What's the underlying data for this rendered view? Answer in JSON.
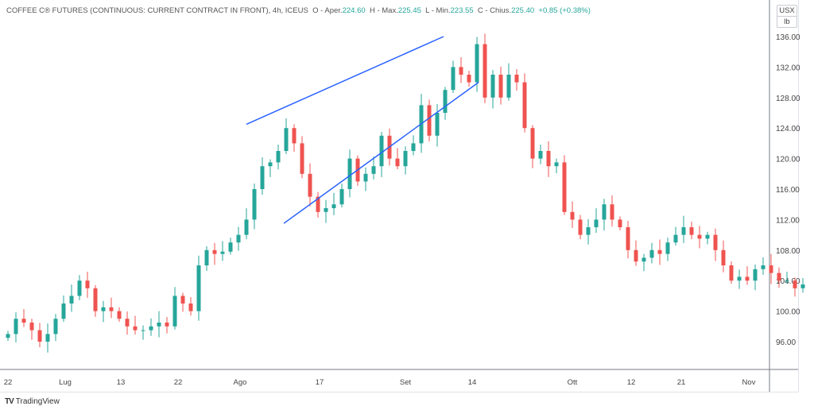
{
  "header": {
    "symbol": "COFFEE C® FUTURES (CONTINUOUS: CURRENT CONTRACT IN FRONT), 4h, ICEUS",
    "o_label": "O - Aper.",
    "o": "224.60",
    "h_label": "H - Max.",
    "h": "225.45",
    "l_label": "L - Min.",
    "l": "223.55",
    "c_label": "C - Chius.",
    "c": "225.40",
    "change": "+0.85 (+0.38%)"
  },
  "unit": {
    "currency": "USX",
    "measure": "lb"
  },
  "logo": {
    "text": "TradingView"
  },
  "colors": {
    "up": "#26a69a",
    "down": "#ef5350",
    "trendline": "#2962ff"
  },
  "chart_data": {
    "type": "candlestick",
    "ylim": [
      93,
      139
    ],
    "yticks": [
      "96.00",
      "100.00",
      "104.00",
      "108.00",
      "112.00",
      "116.00",
      "120.00",
      "124.00",
      "128.00",
      "132.00",
      "136.00"
    ],
    "xticks": [
      {
        "label": "22",
        "i": 0
      },
      {
        "label": "Lug",
        "i": 7.2
      },
      {
        "label": "13",
        "i": 14.2
      },
      {
        "label": "22",
        "i": 21.4
      },
      {
        "label": "Ago",
        "i": 29.2
      },
      {
        "label": "17",
        "i": 39.2
      },
      {
        "label": "Set",
        "i": 50
      },
      {
        "label": "14",
        "i": 58.4
      },
      {
        "label": "Ott",
        "i": 71
      },
      {
        "label": "12",
        "i": 78.4
      },
      {
        "label": "21",
        "i": 84.7
      },
      {
        "label": "Nov",
        "i": 93.2
      }
    ],
    "closes": [
      97,
      99,
      98.5,
      97.5,
      96,
      97,
      99,
      101,
      102,
      104,
      103,
      100,
      100.5,
      100,
      99,
      98,
      97.5,
      97.5,
      98,
      98.5,
      98,
      102,
      101,
      100,
      106,
      108,
      107.5,
      107.8,
      109,
      110,
      112,
      116,
      119,
      119.5,
      121,
      124,
      122,
      118,
      115,
      113,
      113.5,
      114,
      116,
      120,
      117,
      118,
      119,
      123,
      120,
      119,
      121,
      122,
      127,
      123,
      126,
      129,
      132,
      131,
      130,
      135,
      128,
      131,
      128,
      131,
      130,
      124,
      120,
      121,
      119,
      119.5,
      113,
      112,
      110,
      111,
      112,
      114,
      112,
      111,
      108,
      106.5,
      107,
      108,
      107.5,
      109,
      110,
      111,
      110,
      109.5,
      110,
      108,
      106,
      104,
      104.5,
      104,
      105.5,
      106,
      105,
      104,
      104,
      103,
      103.5
    ],
    "trendlines": [
      {
        "from": {
          "i": 30,
          "price": 124.5
        },
        "to": {
          "i": 54.8,
          "price": 136
        }
      },
      {
        "from": {
          "i": 34.7,
          "price": 111.5
        },
        "to": {
          "i": 59.2,
          "price": 130
        }
      }
    ]
  }
}
